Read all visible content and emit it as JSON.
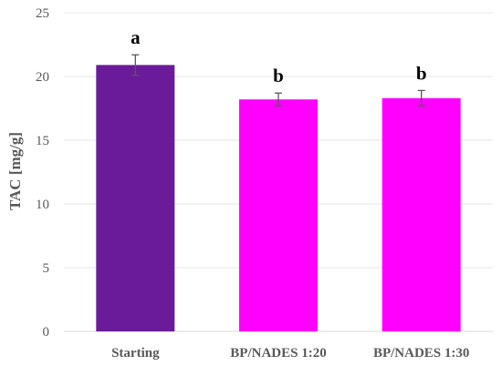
{
  "chart_data": {
    "type": "bar",
    "categories": [
      "Starting",
      "BP/NADES 1:20",
      "BP/NADES 1:30"
    ],
    "values": [
      20.9,
      18.2,
      18.3
    ],
    "errors": [
      0.8,
      0.5,
      0.6
    ],
    "significance_letters": [
      "a",
      "b",
      "b"
    ],
    "colors": [
      "#6a1b9a",
      "#ff00ff",
      "#ff00ff"
    ],
    "error_bar_color": "#595959",
    "ylabel": "TAC [mg/g]",
    "xlabel": "",
    "ylim": [
      0,
      25
    ],
    "yticks": [
      "0",
      "5",
      "10",
      "15",
      "20",
      "25"
    ],
    "grid": true,
    "grid_color": "#e6e6e6"
  }
}
